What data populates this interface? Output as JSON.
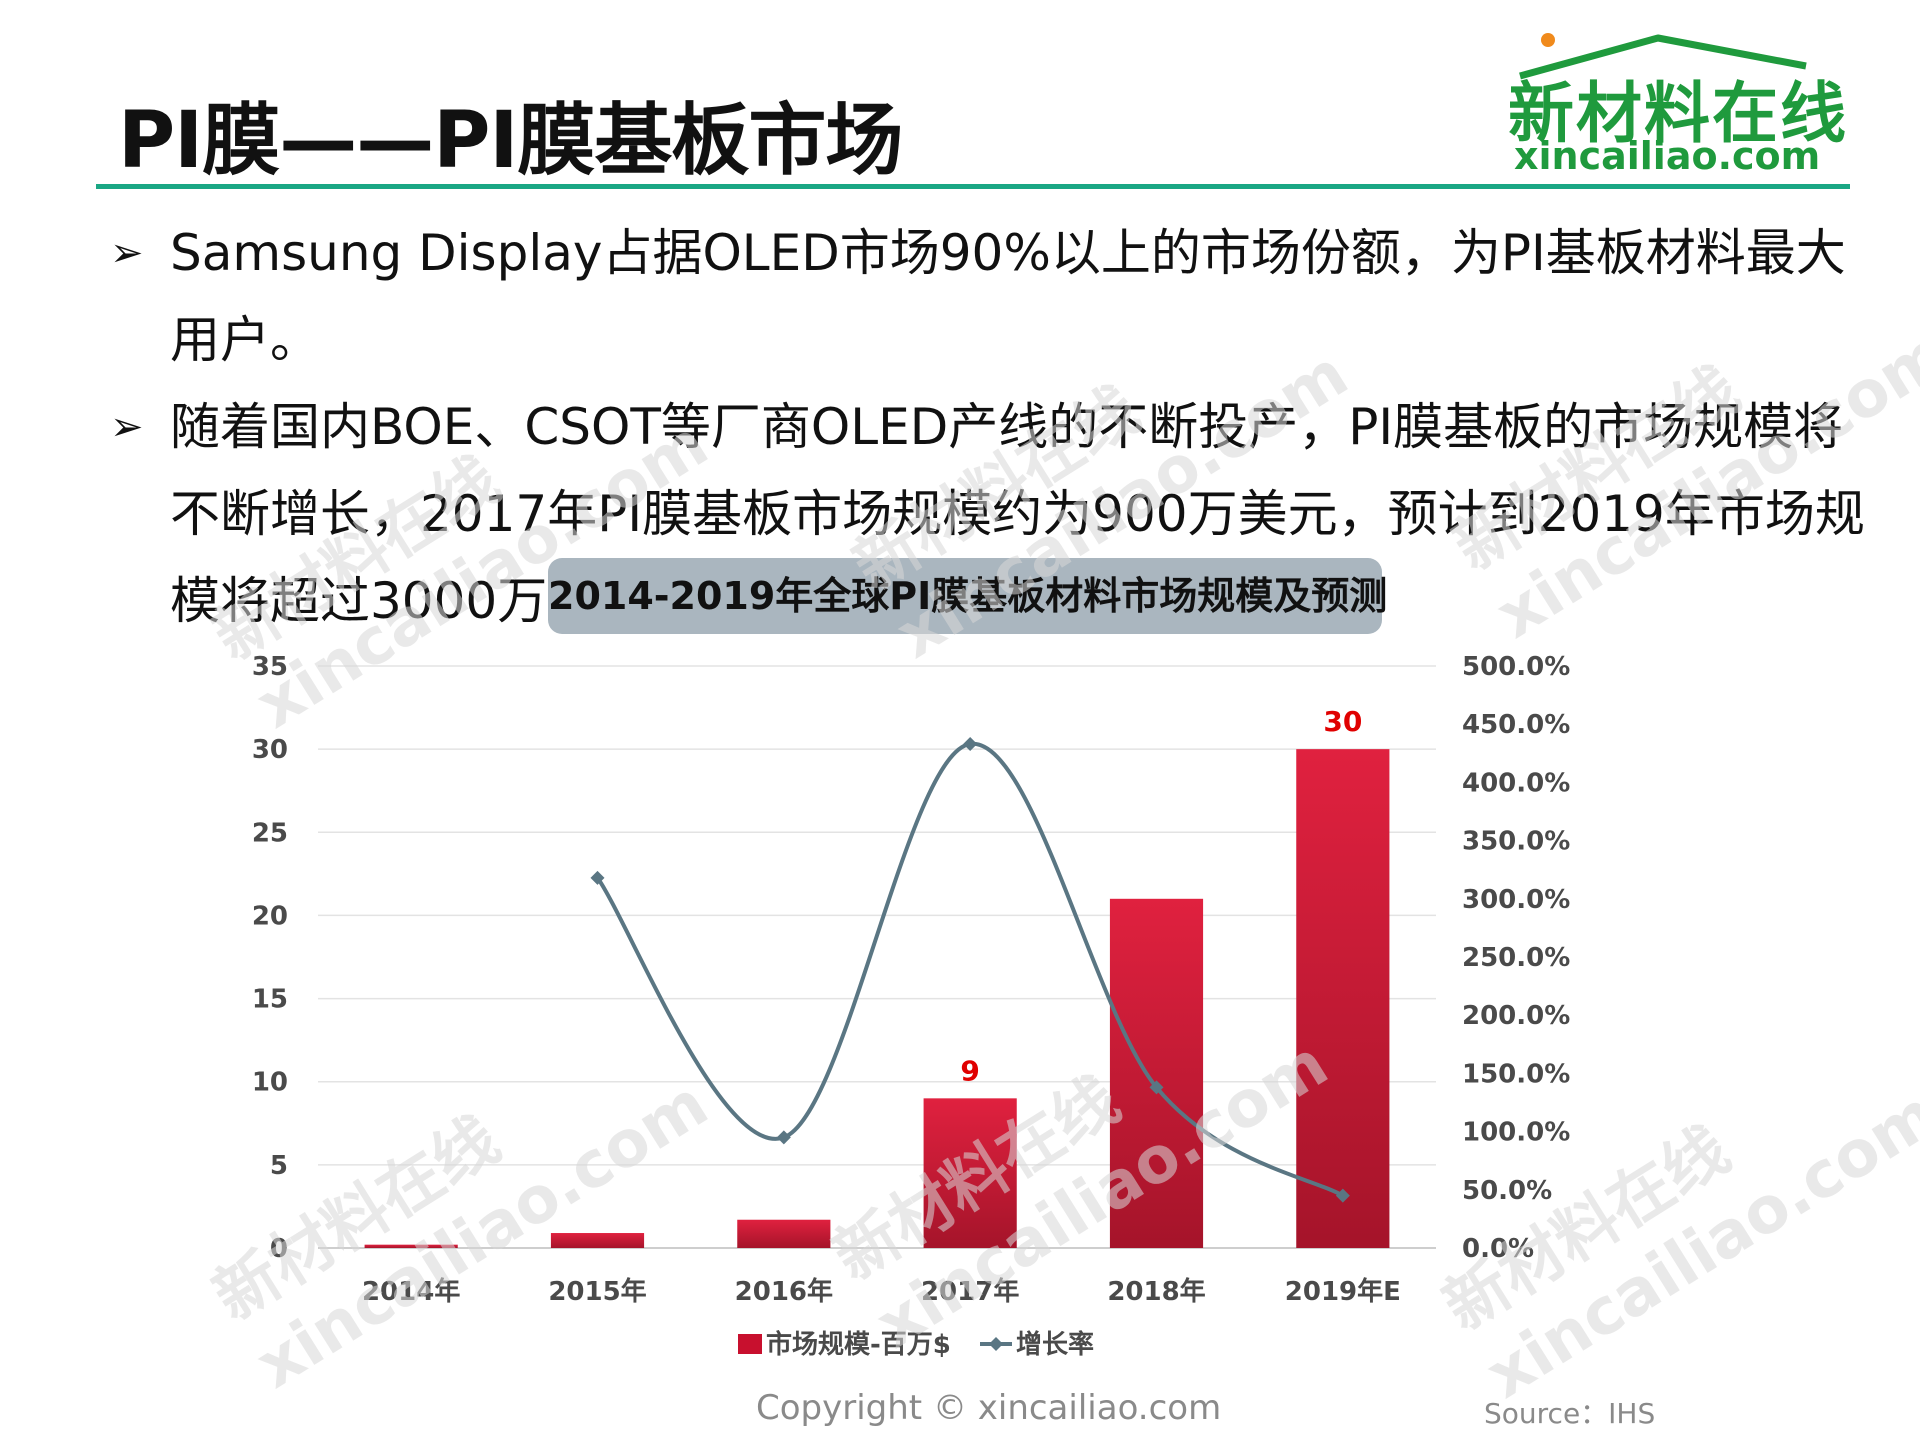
{
  "slide": {
    "title": "PI膜——PI膜基板市场",
    "logo": {
      "cn": "新材料在线",
      "en": "xincailiao.com"
    },
    "bullets": [
      "Samsung Display占据OLED市场90%以上的市场份额，为PI基板材料最大用户。",
      "随着国内BOE、CSOT等厂商OLED产线的不断投产，PI膜基板的市场规模将不断增长，2017年PI膜基板市场规模约为900万美元，预计到2019年市场规模将超过3000万美元。"
    ],
    "bullet_marker": "➢",
    "footer": {
      "copyright": "Copyright © xincailiao.com",
      "source": "Source：IHS"
    },
    "watermark": {
      "cn": "新材料在线",
      "en": "xincailiao.com"
    }
  },
  "chart_data": {
    "type": "bar",
    "title": "2014-2019年全球PI膜基板材料市场规模及预测",
    "categories": [
      "2014年",
      "2015年",
      "2016年",
      "2017年",
      "2018年",
      "2019年E"
    ],
    "series": [
      {
        "name": "市场规模-百万$",
        "type": "bar",
        "axis": "left",
        "values": [
          0.2,
          0.9,
          1.7,
          9,
          21,
          30
        ],
        "data_labels": {
          "3": "9",
          "5": "30"
        },
        "color": "#c8102e"
      },
      {
        "name": "增长率",
        "type": "line",
        "axis": "right",
        "values": [
          null,
          318,
          95,
          433,
          138,
          45
        ],
        "color": "#5a7683"
      }
    ],
    "y_left": {
      "ylim": [
        0,
        35
      ],
      "ticks": [
        "0",
        "5",
        "10",
        "15",
        "20",
        "25",
        "30",
        "35"
      ]
    },
    "y_right": {
      "ylim": [
        0,
        500
      ],
      "ticks": [
        "0.0%",
        "50.0%",
        "100.0%",
        "150.0%",
        "200.0%",
        "250.0%",
        "300.0%",
        "350.0%",
        "400.0%",
        "450.0%",
        "500.0%"
      ]
    },
    "grid": true,
    "legend_position": "bottom"
  }
}
